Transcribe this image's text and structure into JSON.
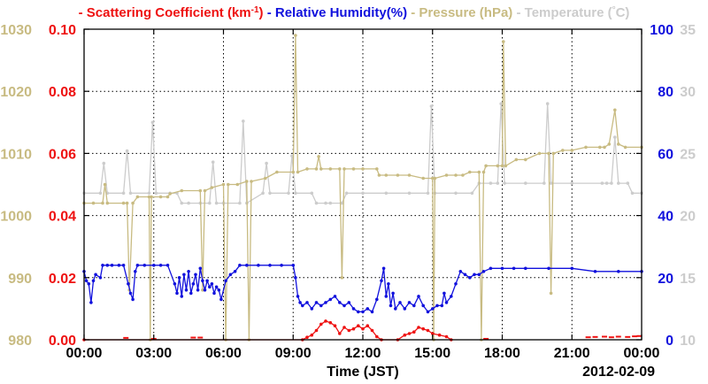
{
  "chart_data": {
    "type": "line",
    "legend": [
      {
        "key": "scattering",
        "dash": "-",
        "label": "Scattering Coefficient (km",
        "sup": "-1",
        "close": ")",
        "color": "#ee1111"
      },
      {
        "key": "humidity",
        "dash": "-",
        "label": "Relative Humidity(%)",
        "color": "#1111dd"
      },
      {
        "key": "pressure",
        "dash": "-",
        "label": "Pressure (hPa)",
        "color": "#c8bb82"
      },
      {
        "key": "temperature",
        "dash": "-",
        "label": "Temperature (",
        "sup": "°",
        "close": "C)",
        "color": "#cccccc"
      }
    ],
    "xlabel": "Time (JST)",
    "date_label": "2012-02-09",
    "x_range": [
      0,
      24
    ],
    "x_tick_labels": [
      "00:00",
      "03:00",
      "06:00",
      "09:00",
      "12:00",
      "15:00",
      "18:00",
      "21:00",
      "00:00"
    ],
    "grid": true,
    "axes": {
      "pressure": {
        "side": "left-outer",
        "range": [
          980,
          1030
        ],
        "ticks": [
          "980",
          "990",
          "1000",
          "1010",
          "1020",
          "1030"
        ],
        "color": "#c8bb82"
      },
      "scattering": {
        "side": "left-inner",
        "range": [
          0,
          0.1
        ],
        "ticks": [
          "0.00",
          "0.02",
          "0.04",
          "0.06",
          "0.08",
          "0.10"
        ],
        "color": "#ee1111"
      },
      "humidity": {
        "side": "right-inner",
        "range": [
          0,
          100
        ],
        "ticks": [
          "0",
          "20",
          "40",
          "60",
          "80",
          "100"
        ],
        "color": "#1111dd"
      },
      "temperature": {
        "side": "right-outer",
        "range": [
          10,
          35
        ],
        "ticks": [
          "10",
          "15",
          "20",
          "25",
          "30",
          "35"
        ],
        "color": "#cccccc"
      }
    },
    "series": [
      {
        "name": "Temperature",
        "axis": "temperature",
        "color": "#cccccc",
        "points": [
          [
            0,
            21.8
          ],
          [
            0.7,
            21.8
          ],
          [
            0.85,
            24.2
          ],
          [
            1.0,
            21.8
          ],
          [
            1.7,
            21.8
          ],
          [
            1.85,
            25.2
          ],
          [
            2.0,
            21.8
          ],
          [
            2.8,
            21.8
          ],
          [
            2.95,
            27.5
          ],
          [
            3.1,
            21.8
          ],
          [
            3.7,
            21.8
          ],
          [
            4.0,
            21.8
          ],
          [
            4.2,
            21
          ],
          [
            4.5,
            21
          ],
          [
            5.0,
            21
          ],
          [
            5.4,
            21
          ],
          [
            5.55,
            24.3
          ],
          [
            5.7,
            21
          ],
          [
            6.0,
            21
          ],
          [
            6.7,
            21
          ],
          [
            6.85,
            27.6
          ],
          [
            7.0,
            21
          ],
          [
            7.7,
            21.8
          ],
          [
            7.85,
            24.2
          ],
          [
            8.0,
            21.8
          ],
          [
            8.8,
            21.8
          ],
          [
            8.95,
            24.8
          ],
          [
            9.1,
            21.8
          ],
          [
            9.8,
            21.8
          ],
          [
            10.0,
            21
          ],
          [
            10.4,
            21
          ],
          [
            10.6,
            21
          ],
          [
            11.1,
            21
          ],
          [
            11.3,
            21.8
          ],
          [
            12.0,
            21.8
          ],
          [
            13.0,
            21.8
          ],
          [
            14.0,
            21.8
          ],
          [
            14.8,
            21.8
          ],
          [
            14.95,
            28.8
          ],
          [
            15.1,
            21.8
          ],
          [
            16.0,
            21.8
          ],
          [
            16.7,
            21.8
          ],
          [
            17.0,
            22.6
          ],
          [
            17.5,
            22.6
          ],
          [
            17.8,
            22.6
          ],
          [
            17.95,
            29.0
          ],
          [
            18.1,
            22.6
          ],
          [
            19.0,
            22.6
          ],
          [
            19.8,
            22.6
          ],
          [
            19.95,
            29.0
          ],
          [
            20.1,
            22.6
          ],
          [
            21.0,
            22.6
          ],
          [
            22.3,
            22.6
          ],
          [
            22.5,
            22.6
          ],
          [
            22.7,
            22.6
          ],
          [
            22.85,
            26.3
          ],
          [
            23.0,
            22.6
          ],
          [
            23.4,
            22.6
          ],
          [
            23.6,
            21.8
          ],
          [
            24.0,
            21.8
          ]
        ]
      },
      {
        "name": "Pressure",
        "axis": "pressure",
        "color": "#c8bb82",
        "points": [
          [
            0,
            1002
          ],
          [
            0.4,
            1002
          ],
          [
            0.8,
            1002
          ],
          [
            0.9,
            1005
          ],
          [
            1.0,
            1002
          ],
          [
            1.7,
            1002
          ],
          [
            1.85,
            1002
          ],
          [
            1.95,
            988
          ],
          [
            2.1,
            1002
          ],
          [
            2.3,
            1003
          ],
          [
            2.8,
            1003
          ],
          [
            2.85,
            980
          ],
          [
            2.9,
            1003
          ],
          [
            3.3,
            1003
          ],
          [
            3.6,
            1003
          ],
          [
            3.7,
            1003.5
          ],
          [
            4.2,
            1004
          ],
          [
            5.0,
            1004
          ],
          [
            5.1,
            988
          ],
          [
            5.2,
            1004
          ],
          [
            5.5,
            1004.5
          ],
          [
            6.0,
            1005
          ],
          [
            6.1,
            980
          ],
          [
            6.2,
            1005
          ],
          [
            6.6,
            1005
          ],
          [
            7.0,
            1005.5
          ],
          [
            7.1,
            980
          ],
          [
            7.2,
            1005.5
          ],
          [
            7.8,
            1006
          ],
          [
            8.3,
            1007
          ],
          [
            9.0,
            1007
          ],
          [
            9.1,
            1029
          ],
          [
            9.2,
            1007
          ],
          [
            9.6,
            1007.5
          ],
          [
            10.0,
            1007.5
          ],
          [
            10.1,
            1009.5
          ],
          [
            10.2,
            1007.5
          ],
          [
            10.6,
            1007.5
          ],
          [
            11.0,
            1007.5
          ],
          [
            11.1,
            990
          ],
          [
            11.2,
            1007.5
          ],
          [
            11.6,
            1007.5
          ],
          [
            12.0,
            1007.5
          ],
          [
            12.6,
            1007.5
          ],
          [
            12.7,
            1006.5
          ],
          [
            13.0,
            1006.5
          ],
          [
            13.5,
            1006.5
          ],
          [
            14.0,
            1006.5
          ],
          [
            14.6,
            1006
          ],
          [
            15.0,
            1006
          ],
          [
            15.05,
            980
          ],
          [
            15.1,
            1006
          ],
          [
            15.6,
            1006.5
          ],
          [
            16.0,
            1006.5
          ],
          [
            16.3,
            1006.5
          ],
          [
            16.6,
            1007
          ],
          [
            17.0,
            1007
          ],
          [
            17.1,
            980
          ],
          [
            17.2,
            1007
          ],
          [
            17.3,
            1008
          ],
          [
            17.8,
            1008
          ],
          [
            18.0,
            1008
          ],
          [
            18.05,
            1028
          ],
          [
            18.15,
            1008
          ],
          [
            18.6,
            1009
          ],
          [
            19.0,
            1009
          ],
          [
            19.6,
            1010
          ],
          [
            20.0,
            1010
          ],
          [
            20.1,
            987.5
          ],
          [
            20.2,
            1010
          ],
          [
            20.6,
            1010.5
          ],
          [
            21.0,
            1010.5
          ],
          [
            21.6,
            1011
          ],
          [
            22.2,
            1011
          ],
          [
            22.4,
            1011
          ],
          [
            22.6,
            1011.5
          ],
          [
            22.85,
            1017
          ],
          [
            23.0,
            1011.5
          ],
          [
            23.3,
            1011
          ],
          [
            24.0,
            1011
          ]
        ]
      },
      {
        "name": "Relative Humidity",
        "axis": "humidity",
        "color": "#1111dd",
        "points": [
          [
            0,
            22
          ],
          [
            0.1,
            19
          ],
          [
            0.2,
            18
          ],
          [
            0.3,
            12
          ],
          [
            0.4,
            19
          ],
          [
            0.5,
            21
          ],
          [
            0.7,
            20
          ],
          [
            0.8,
            24
          ],
          [
            1.0,
            24
          ],
          [
            1.2,
            24
          ],
          [
            1.5,
            24
          ],
          [
            1.7,
            24
          ],
          [
            1.9,
            18
          ],
          [
            2.0,
            15
          ],
          [
            2.1,
            13
          ],
          [
            2.2,
            22
          ],
          [
            2.3,
            24
          ],
          [
            2.6,
            24
          ],
          [
            3.0,
            24
          ],
          [
            3.3,
            24
          ],
          [
            3.6,
            24
          ],
          [
            3.9,
            18
          ],
          [
            4.0,
            15
          ],
          [
            4.1,
            20
          ],
          [
            4.2,
            14
          ],
          [
            4.3,
            21
          ],
          [
            4.4,
            16
          ],
          [
            4.5,
            22
          ],
          [
            4.6,
            15
          ],
          [
            4.7,
            18
          ],
          [
            4.8,
            21
          ],
          [
            4.9,
            16
          ],
          [
            5.0,
            23
          ],
          [
            5.1,
            19
          ],
          [
            5.2,
            16
          ],
          [
            5.3,
            19
          ],
          [
            5.4,
            17
          ],
          [
            5.5,
            18
          ],
          [
            5.6,
            15
          ],
          [
            5.7,
            17
          ],
          [
            5.8,
            16
          ],
          [
            5.9,
            13
          ],
          [
            6.1,
            19
          ],
          [
            6.3,
            21
          ],
          [
            6.5,
            22
          ],
          [
            6.7,
            24
          ],
          [
            7.0,
            24
          ],
          [
            7.5,
            24
          ],
          [
            8.0,
            24
          ],
          [
            8.5,
            24
          ],
          [
            9.0,
            24
          ],
          [
            9.1,
            20
          ],
          [
            9.2,
            14
          ],
          [
            9.3,
            12
          ],
          [
            9.4,
            11
          ],
          [
            9.6,
            12
          ],
          [
            9.8,
            10
          ],
          [
            10.0,
            12
          ],
          [
            10.2,
            11
          ],
          [
            10.4,
            12
          ],
          [
            10.6,
            13
          ],
          [
            10.8,
            14
          ],
          [
            11.0,
            12
          ],
          [
            11.2,
            11
          ],
          [
            11.4,
            12
          ],
          [
            11.6,
            10
          ],
          [
            11.8,
            9
          ],
          [
            12.0,
            9
          ],
          [
            12.2,
            10
          ],
          [
            12.4,
            9
          ],
          [
            12.6,
            13
          ],
          [
            12.8,
            19
          ],
          [
            12.9,
            23
          ],
          [
            13.0,
            14
          ],
          [
            13.1,
            18
          ],
          [
            13.2,
            11
          ],
          [
            13.3,
            15
          ],
          [
            13.4,
            10
          ],
          [
            13.6,
            12
          ],
          [
            13.8,
            10
          ],
          [
            14.0,
            12
          ],
          [
            14.2,
            11
          ],
          [
            14.4,
            14
          ],
          [
            14.6,
            11
          ],
          [
            14.8,
            9
          ],
          [
            15.0,
            10
          ],
          [
            15.2,
            11
          ],
          [
            15.4,
            11
          ],
          [
            15.5,
            15
          ],
          [
            15.6,
            12
          ],
          [
            15.8,
            14
          ],
          [
            16.0,
            18
          ],
          [
            16.2,
            22
          ],
          [
            16.4,
            21
          ],
          [
            16.6,
            20
          ],
          [
            16.8,
            21
          ],
          [
            17.0,
            21
          ],
          [
            17.2,
            22
          ],
          [
            17.5,
            23
          ],
          [
            18.0,
            23
          ],
          [
            18.5,
            23
          ],
          [
            19.0,
            23
          ],
          [
            20.0,
            23
          ],
          [
            21.0,
            23
          ],
          [
            22.0,
            22
          ],
          [
            23.0,
            22
          ],
          [
            24.0,
            22
          ]
        ]
      },
      {
        "name": "Scattering Coefficient",
        "axis": "scattering",
        "color": "#ee1111",
        "points": [
          [
            0,
            0.0
          ],
          [
            9.4,
            0.0
          ],
          [
            9.6,
            0.0008
          ],
          [
            9.8,
            0.0015
          ],
          [
            10.0,
            0.003
          ],
          [
            10.2,
            0.005
          ],
          [
            10.4,
            0.006
          ],
          [
            10.6,
            0.0055
          ],
          [
            10.8,
            0.0045
          ],
          [
            11.0,
            0.002
          ],
          [
            11.2,
            0.004
          ],
          [
            11.4,
            0.003
          ],
          [
            11.6,
            0.0035
          ],
          [
            11.8,
            0.0045
          ],
          [
            12.0,
            0.0035
          ],
          [
            12.2,
            0.0045
          ],
          [
            12.4,
            0.003
          ],
          [
            12.6,
            0.001
          ],
          [
            12.8,
            0.0
          ],
          [
            13.5,
            0.0
          ],
          [
            13.8,
            0.0015
          ],
          [
            14.0,
            0.002
          ],
          [
            14.2,
            0.0025
          ],
          [
            14.4,
            0.004
          ],
          [
            14.6,
            0.0035
          ],
          [
            14.8,
            0.003
          ],
          [
            15.0,
            0.002
          ],
          [
            15.3,
            0.0015
          ],
          [
            15.6,
            0.001
          ],
          [
            15.8,
            0.0
          ]
        ],
        "marks": [
          [
            1.8,
            0.0006
          ],
          [
            3.0,
            0.0003
          ],
          [
            4.7,
            0.0007
          ],
          [
            5.0,
            0.0007
          ],
          [
            17.3,
            0.0003
          ],
          [
            21.7,
            0.0008
          ],
          [
            22.0,
            0.0009
          ],
          [
            22.4,
            0.001
          ],
          [
            22.7,
            0.0008
          ],
          [
            23.0,
            0.001
          ],
          [
            23.4,
            0.0009
          ],
          [
            23.7,
            0.0011
          ],
          [
            23.9,
            0.0012
          ]
        ]
      }
    ]
  }
}
